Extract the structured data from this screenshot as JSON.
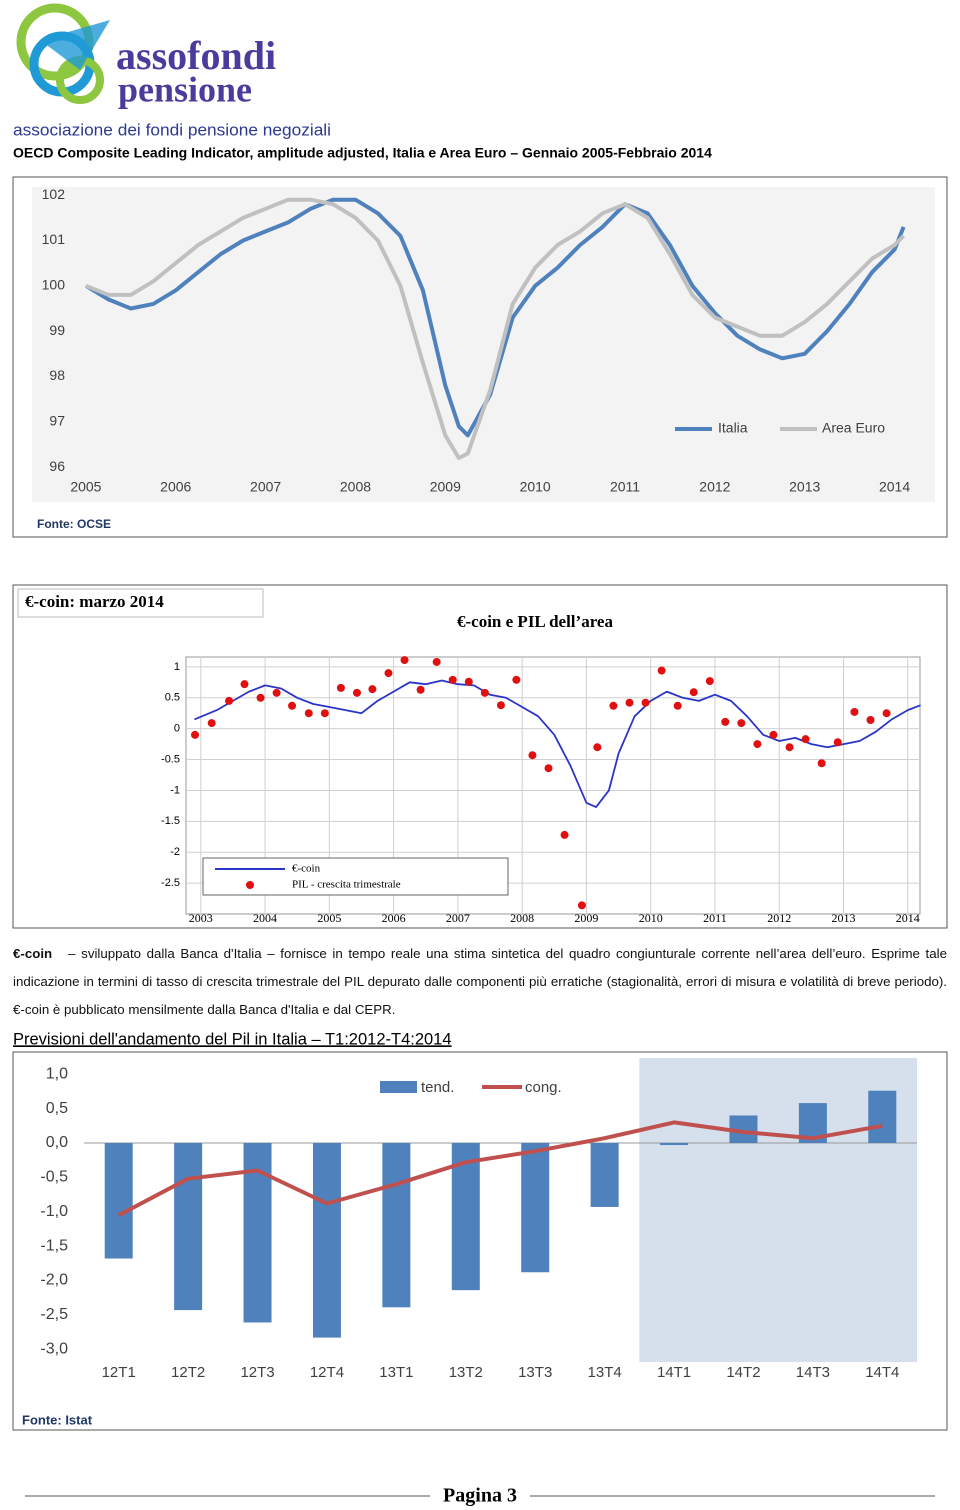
{
  "header": {
    "logo_line1": "assofondi",
    "logo_line2": "pensione",
    "logo_tagline": "associazione dei fondi pensione negoziali"
  },
  "paragraph": {
    "term": "€-coin",
    "text": "– sviluppato dalla Banca d'Italia – fornisce in tempo reale una stima sintetica del quadro congiunturale corrente nell’area dell’euro. Esprime tale indicazione in termini di tasso di crescita trimestrale del PIL depurato dalle componenti più erratiche (stagionalità, errori di misura e volatilità di breve periodo). €-coin è pubblicato mensilmente dalla Banca d'Italia e dal CEPR."
  },
  "footer": {
    "page": "Pagina 3"
  },
  "chart_data": [
    {
      "type": "line",
      "title": "OECD Composite Leading Indicator, amplitude adjusted, Italia e Area Euro – Gennaio 2005-Febbraio 2014",
      "source": "Fonte: OCSE",
      "x": [
        2005,
        2005.25,
        2005.5,
        2005.75,
        2006,
        2006.25,
        2006.5,
        2006.75,
        2007,
        2007.25,
        2007.5,
        2007.75,
        2008,
        2008.25,
        2008.5,
        2008.75,
        2009,
        2009.15,
        2009.25,
        2009.5,
        2009.75,
        2010,
        2010.25,
        2010.5,
        2010.75,
        2011,
        2011.25,
        2011.5,
        2011.75,
        2012,
        2012.25,
        2012.5,
        2012.75,
        2013,
        2013.25,
        2013.5,
        2013.75,
        2014,
        2014.1
      ],
      "series": [
        {
          "name": "Italia",
          "color": "#4f81bd",
          "values": [
            100,
            99.7,
            99.5,
            99.6,
            99.9,
            100.3,
            100.7,
            101.0,
            101.2,
            101.4,
            101.7,
            101.9,
            101.9,
            101.6,
            101.1,
            99.9,
            97.8,
            96.9,
            96.7,
            97.6,
            99.3,
            100.0,
            100.4,
            100.9,
            101.3,
            101.8,
            101.6,
            100.9,
            100.0,
            99.4,
            98.9,
            98.6,
            98.4,
            98.5,
            99.0,
            99.6,
            100.3,
            100.8,
            101.3
          ]
        },
        {
          "name": "Area Euro",
          "color": "#c0c0c0",
          "values": [
            100,
            99.8,
            99.8,
            100.1,
            100.5,
            100.9,
            101.2,
            101.5,
            101.7,
            101.9,
            101.9,
            101.8,
            101.5,
            101.0,
            100.0,
            98.3,
            96.7,
            96.2,
            96.3,
            97.7,
            99.6,
            100.4,
            100.9,
            101.2,
            101.6,
            101.8,
            101.5,
            100.7,
            99.8,
            99.3,
            99.1,
            98.9,
            98.9,
            99.2,
            99.6,
            100.1,
            100.6,
            100.9,
            101.1
          ]
        }
      ],
      "xlim": [
        2004.4,
        2014.45
      ],
      "xticks": [
        2005,
        2006,
        2007,
        2008,
        2009,
        2010,
        2011,
        2012,
        2013,
        2014
      ],
      "ylim": [
        95.23,
        102.18
      ],
      "yticks": [
        96,
        97,
        98,
        99,
        100,
        101,
        102
      ],
      "grid": false,
      "legend": "lower right"
    },
    {
      "type": "line",
      "title": "€-coin e PIL dell’area",
      "label": "€-coin: marzo 2014",
      "series": [
        {
          "name": "€-coin",
          "color": "#2a35c8",
          "mode": "line",
          "x": [
            2002.9,
            2003.25,
            2003.5,
            2003.75,
            2004,
            2004.25,
            2004.5,
            2004.75,
            2005,
            2005.25,
            2005.5,
            2005.75,
            2006,
            2006.25,
            2006.5,
            2006.75,
            2007,
            2007.25,
            2007.5,
            2007.75,
            2008,
            2008.25,
            2008.5,
            2008.75,
            2009,
            2009.15,
            2009.35,
            2009.5,
            2009.75,
            2010,
            2010.25,
            2010.5,
            2010.75,
            2011,
            2011.25,
            2011.5,
            2011.75,
            2012,
            2012.25,
            2012.5,
            2012.75,
            2013,
            2013.25,
            2013.5,
            2013.75,
            2014,
            2014.2
          ],
          "values": [
            0.15,
            0.3,
            0.45,
            0.6,
            0.7,
            0.65,
            0.5,
            0.4,
            0.35,
            0.3,
            0.25,
            0.45,
            0.6,
            0.75,
            0.72,
            0.78,
            0.72,
            0.7,
            0.55,
            0.5,
            0.35,
            0.2,
            -0.1,
            -0.6,
            -1.2,
            -1.27,
            -1.0,
            -0.4,
            0.2,
            0.45,
            0.6,
            0.5,
            0.45,
            0.55,
            0.45,
            0.2,
            -0.1,
            -0.2,
            -0.15,
            -0.25,
            -0.3,
            -0.25,
            -0.2,
            -0.05,
            0.15,
            0.3,
            0.38
          ]
        },
        {
          "name": "PIL - crescita trimestrale",
          "color": "#e01010",
          "mode": "markers",
          "x": [
            2002.91,
            2003.17,
            2003.44,
            2003.68,
            2003.93,
            2004.18,
            2004.42,
            2004.68,
            2004.93,
            2005.18,
            2005.43,
            2005.67,
            2005.92,
            2006.17,
            2006.42,
            2006.67,
            2006.92,
            2007.17,
            2007.42,
            2007.67,
            2007.91,
            2008.16,
            2008.41,
            2008.66,
            2008.93,
            2009.17,
            2009.42,
            2009.67,
            2009.92,
            2010.17,
            2010.42,
            2010.67,
            2010.92,
            2011.16,
            2011.41,
            2011.66,
            2011.91,
            2012.16,
            2012.41,
            2012.66,
            2012.91,
            2013.17,
            2013.42,
            2013.67
          ],
          "values": [
            -0.1,
            0.09,
            0.45,
            0.72,
            0.5,
            0.58,
            0.37,
            0.25,
            0.25,
            0.66,
            0.58,
            0.64,
            0.9,
            1.11,
            0.63,
            1.08,
            0.79,
            0.76,
            0.58,
            0.38,
            0.79,
            -0.43,
            -0.64,
            -1.72,
            -2.86,
            -0.3,
            0.37,
            0.42,
            0.42,
            0.94,
            0.37,
            0.59,
            0.77,
            0.11,
            0.09,
            -0.25,
            -0.1,
            -0.3,
            -0.17,
            -0.56,
            -0.22,
            0.27,
            0.14,
            0.25
          ]
        }
      ],
      "xlim": [
        2002.77,
        2014.19
      ],
      "xticks": [
        2003,
        2004,
        2005,
        2006,
        2007,
        2008,
        2009,
        2010,
        2011,
        2012,
        2013,
        2014
      ],
      "ylim": [
        -3,
        1.16
      ],
      "yticks": [
        1,
        0.5,
        0,
        -0.5,
        -1,
        -1.5,
        -2,
        -2.5
      ],
      "grid": true,
      "legend": "lower left"
    },
    {
      "type": "bar",
      "title": "Previsioni dell'andamento del Pil in Italia – T1:2012-T4:2014",
      "source": "Fonte: Istat",
      "categories": [
        "12T1",
        "12T2",
        "12T3",
        "12T4",
        "13T1",
        "13T2",
        "13T3",
        "13T4",
        "14T1",
        "14T2",
        "14T3",
        "14T4"
      ],
      "series": [
        {
          "name": "tend.",
          "type": "bar",
          "color": "#4f81bd",
          "values": [
            -1.68,
            -2.43,
            -2.61,
            -2.83,
            -2.39,
            -2.14,
            -1.88,
            -0.93,
            -0.03,
            0.4,
            0.58,
            0.76
          ]
        },
        {
          "name": "cong.",
          "type": "line",
          "color": "#c0504d",
          "values": [
            -1.05,
            -0.52,
            -0.4,
            -0.88,
            -0.6,
            -0.28,
            -0.12,
            0.07,
            0.3,
            0.16,
            0.07,
            0.25
          ]
        }
      ],
      "ylim": [
        -3.185,
        1.236
      ],
      "yticks": [
        {
          "value": 1,
          "label": "1,0"
        },
        {
          "value": 0.5,
          "label": "0,5"
        },
        {
          "value": 0,
          "label": "0,0"
        },
        {
          "value": -0.5,
          "label": "-0,5"
        },
        {
          "value": -1,
          "label": "-1,0"
        },
        {
          "value": -1.5,
          "label": "-1,5"
        },
        {
          "value": -2,
          "label": "-2,0"
        },
        {
          "value": -2.5,
          "label": "-2,5"
        },
        {
          "value": -3,
          "label": "-3,0"
        }
      ],
      "grid": false,
      "legend": "upper center"
    }
  ]
}
